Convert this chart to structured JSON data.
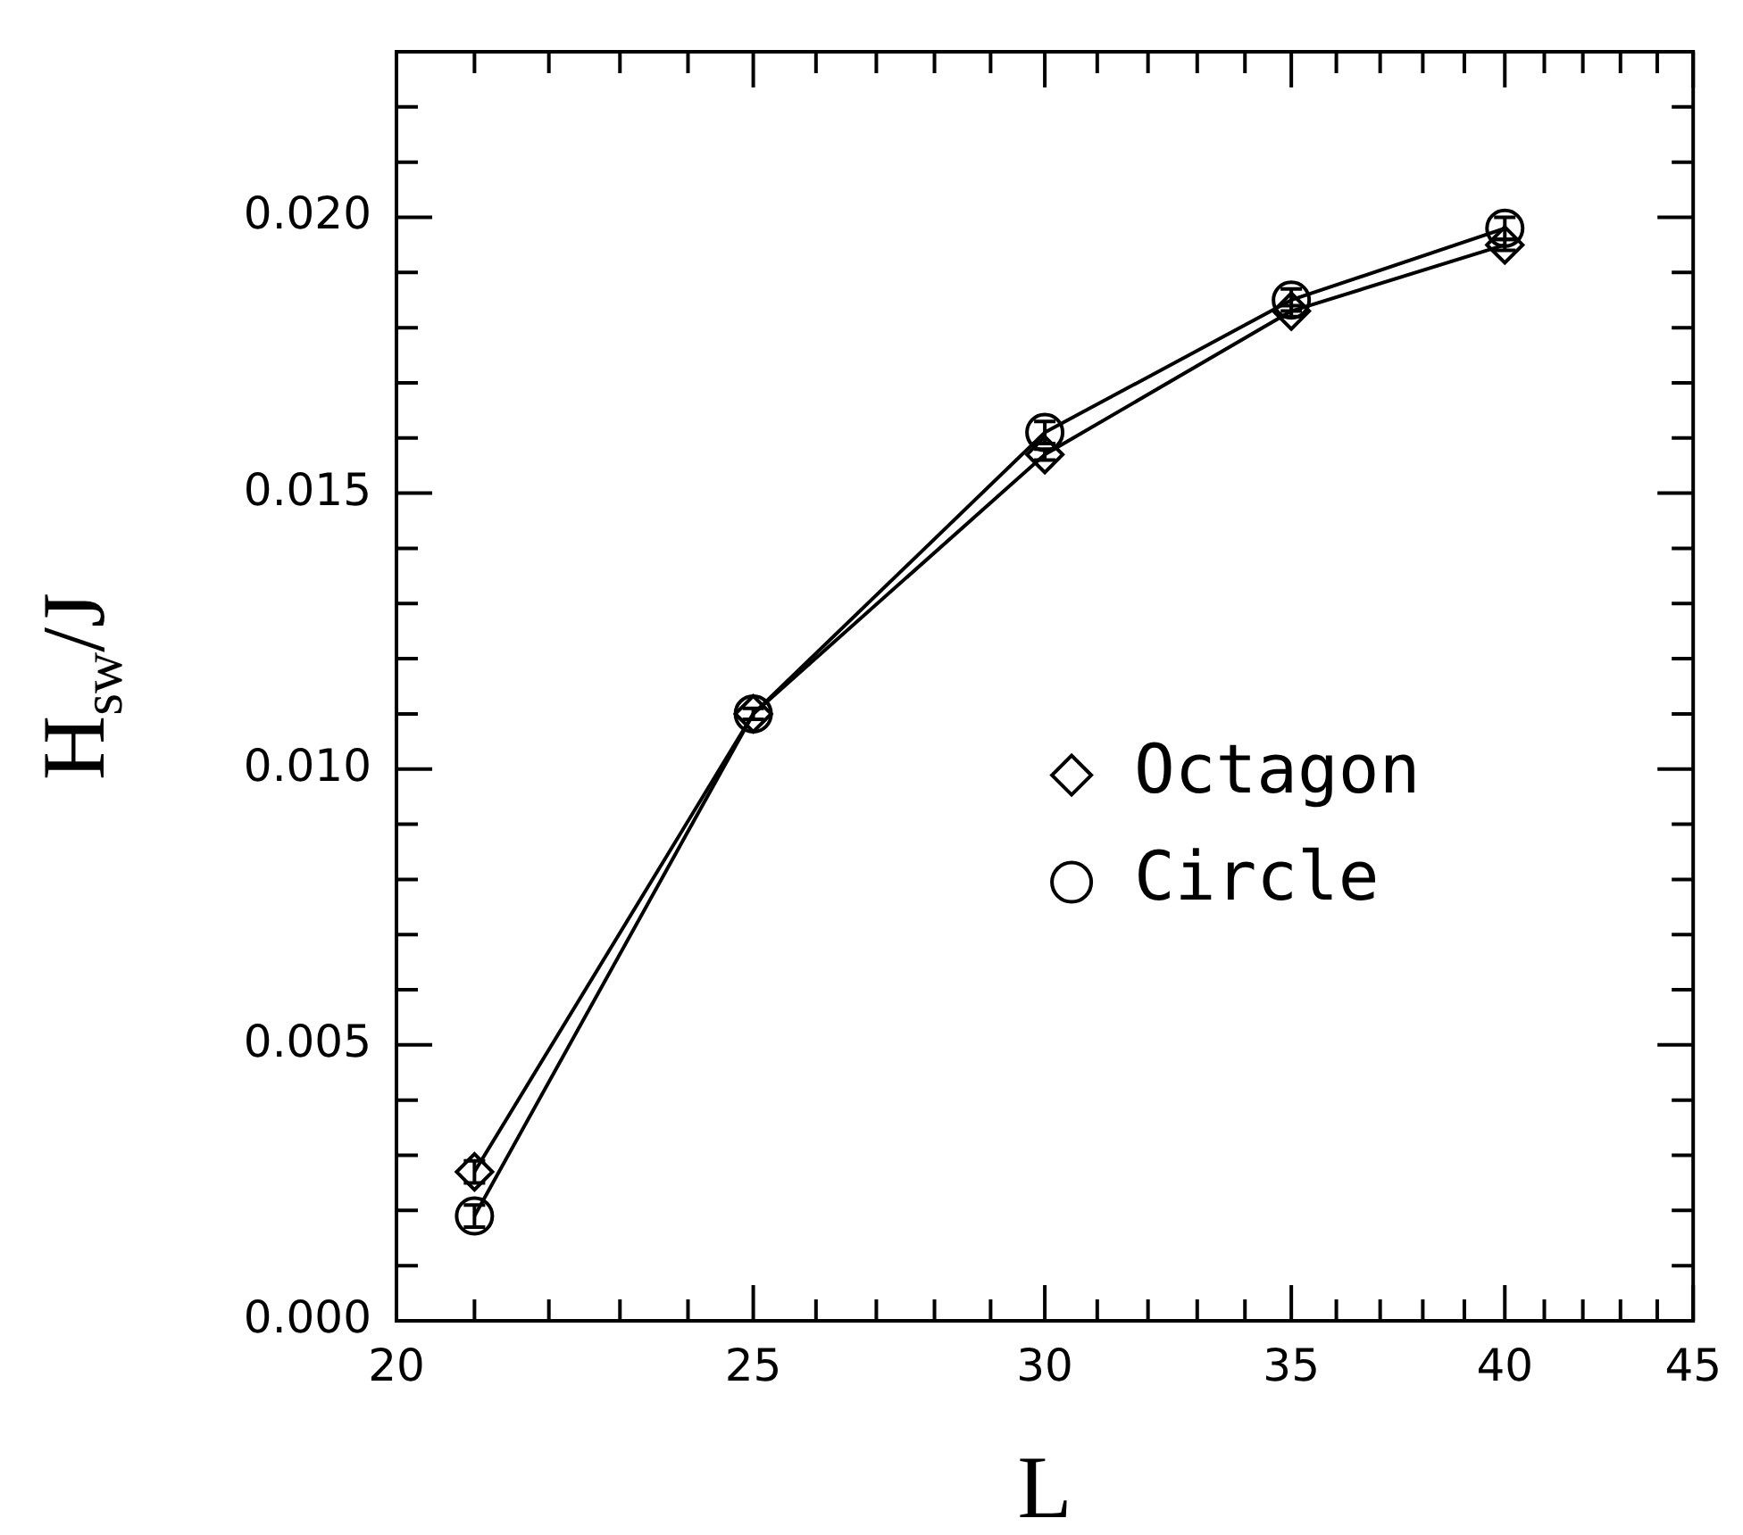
{
  "chart_data": {
    "type": "line",
    "xlabel": "L",
    "ylabel": "H$_{sw}$/J",
    "log": "x",
    "xlim": [
      20,
      45
    ],
    "xticks": [
      20,
      {
        "value": 21,
        "label": null
      },
      {
        "value": 22,
        "label": null
      },
      {
        "value": 23,
        "label": null
      },
      {
        "value": 24,
        "label": null
      },
      25,
      {
        "value": 26,
        "label": null
      },
      {
        "value": 27,
        "label": null
      },
      {
        "value": 28,
        "label": null
      },
      {
        "value": 29,
        "label": null
      },
      30,
      {
        "value": 31,
        "label": null
      },
      {
        "value": 32,
        "label": null
      },
      {
        "value": 33,
        "label": null
      },
      {
        "value": 34,
        "label": null
      },
      35,
      {
        "value": 36,
        "label": null
      },
      {
        "value": 37,
        "label": null
      },
      {
        "value": 38,
        "label": null
      },
      {
        "value": 39,
        "label": null
      },
      40,
      {
        "value": 41,
        "label": null
      },
      {
        "value": 42,
        "label": null
      },
      {
        "value": 43,
        "label": null
      },
      {
        "value": 44,
        "label": null
      },
      45
    ],
    "ylim": [
      0,
      0.023
    ],
    "yticks": [
      {
        "value": 0,
        "label": "0.000"
      },
      {
        "value": 0.001,
        "label": null
      },
      {
        "value": 0.002,
        "label": null
      },
      {
        "value": 0.003,
        "label": null
      },
      {
        "value": 0.004,
        "label": null
      },
      {
        "value": 0.005,
        "label": "0.005"
      },
      {
        "value": 0.006,
        "label": null
      },
      {
        "value": 0.007,
        "label": null
      },
      {
        "value": 0.008,
        "label": null
      },
      {
        "value": 0.009,
        "label": null
      },
      {
        "value": 0.01,
        "label": "0.010"
      },
      {
        "value": 0.011,
        "label": null
      },
      {
        "value": 0.012,
        "label": null
      },
      {
        "value": 0.013,
        "label": null
      },
      {
        "value": 0.014,
        "label": null
      },
      {
        "value": 0.015,
        "label": "0.015"
      },
      {
        "value": 0.016,
        "label": null
      },
      {
        "value": 0.017,
        "label": null
      },
      {
        "value": 0.018,
        "label": null
      },
      {
        "value": 0.019,
        "label": null
      },
      {
        "value": 0.02,
        "label": "0.020"
      },
      {
        "value": 0.021,
        "label": null
      },
      {
        "value": 0.022,
        "label": null
      }
    ],
    "x": [
      21,
      25,
      30,
      35,
      40
    ],
    "legend": "right",
    "line_style": "solid",
    "series": [
      {
        "name": "Octagon",
        "color": "#000000",
        "marker": "diamond",
        "values": [
          0.0027,
          0.011,
          0.0157,
          0.0183,
          0.0195
        ],
        "errors": [
          0.0002,
          null,
          0.0001,
          0.0001,
          0.0001
        ]
      },
      {
        "name": "Circle",
        "color": "#000000",
        "marker": "circle",
        "values": [
          0.0019,
          0.011,
          0.0161,
          0.0185,
          0.0198
        ],
        "errors": [
          0.0002,
          0.0001,
          0.0002,
          0.0002,
          0.0002
        ]
      }
    ]
  }
}
